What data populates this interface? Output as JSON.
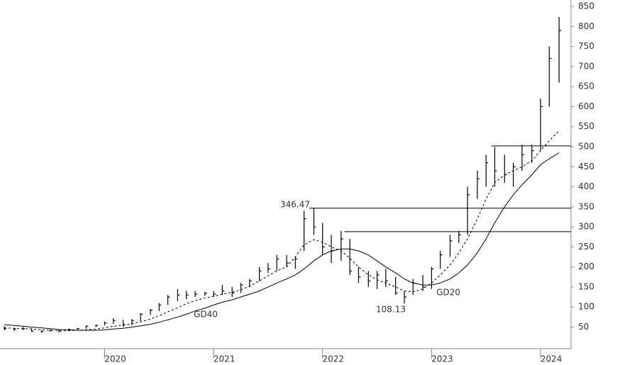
{
  "chart_data": {
    "type": "ohlc",
    "xlim": [
      2019.04,
      2024.28
    ],
    "xticks": [
      2020,
      2021,
      2022,
      2023,
      2024
    ],
    "ylim": [
      -4,
      866
    ],
    "yticks": [
      50,
      100,
      150,
      200,
      250,
      300,
      350,
      400,
      450,
      500,
      550,
      600,
      650,
      700,
      750,
      800,
      850
    ],
    "color": "#000000",
    "x": [
      2019.08,
      2019.17,
      2019.25,
      2019.33,
      2019.42,
      2019.5,
      2019.58,
      2019.67,
      2019.75,
      2019.83,
      2019.92,
      2020.0,
      2020.08,
      2020.17,
      2020.25,
      2020.33,
      2020.42,
      2020.5,
      2020.58,
      2020.67,
      2020.75,
      2020.83,
      2020.92,
      2021.0,
      2021.08,
      2021.17,
      2021.25,
      2021.33,
      2021.42,
      2021.5,
      2021.58,
      2021.67,
      2021.75,
      2021.83,
      2021.92,
      2022.0,
      2022.08,
      2022.17,
      2022.25,
      2022.33,
      2022.42,
      2022.5,
      2022.58,
      2022.67,
      2022.75,
      2022.83,
      2022.92,
      2023.0,
      2023.08,
      2023.17,
      2023.25,
      2023.33,
      2023.42,
      2023.5,
      2023.58,
      2023.67,
      2023.75,
      2023.83,
      2023.92,
      2024.0,
      2024.08,
      2024.17
    ],
    "low": [
      42,
      40,
      42,
      38,
      36,
      38,
      37,
      40,
      42,
      46,
      50,
      55,
      58,
      50,
      55,
      65,
      80,
      90,
      105,
      115,
      120,
      125,
      128,
      125,
      130,
      125,
      135,
      150,
      165,
      185,
      190,
      200,
      195,
      240,
      280,
      230,
      210,
      215,
      180,
      160,
      150,
      145,
      150,
      130,
      108.13,
      130,
      140,
      145,
      195,
      225,
      260,
      280,
      370,
      400,
      400,
      410,
      400,
      440,
      460,
      490,
      600,
      660
    ],
    "high": [
      52,
      48,
      50,
      47,
      42,
      44,
      44,
      46,
      48,
      54,
      56,
      64,
      72,
      68,
      70,
      85,
      95,
      110,
      130,
      145,
      140,
      140,
      138,
      140,
      155,
      150,
      160,
      170,
      200,
      210,
      230,
      230,
      225,
      340,
      346.47,
      310,
      280,
      290,
      270,
      200,
      190,
      190,
      195,
      175,
      140,
      170,
      180,
      200,
      240,
      280,
      290,
      400,
      440,
      480,
      500,
      480,
      460,
      505,
      505,
      620,
      750,
      824
    ],
    "close": [
      46,
      45,
      46,
      40,
      39,
      42,
      40,
      44,
      46,
      52,
      54,
      60,
      66,
      56,
      66,
      82,
      92,
      105,
      125,
      130,
      130,
      132,
      134,
      132,
      140,
      135,
      155,
      165,
      190,
      195,
      220,
      210,
      220,
      320,
      300,
      250,
      240,
      270,
      190,
      175,
      165,
      180,
      165,
      135,
      125,
      160,
      150,
      195,
      230,
      265,
      280,
      380,
      420,
      460,
      440,
      430,
      450,
      480,
      490,
      600,
      720,
      790
    ],
    "series": [
      {
        "name": "GD20",
        "dash": true,
        "values": [
          48,
          47,
          46,
          45,
          43,
          42,
          41,
          41,
          42,
          43,
          45,
          48,
          52,
          55,
          58,
          63,
          70,
          78,
          88,
          98,
          108,
          116,
          122,
          127,
          132,
          137,
          143,
          152,
          165,
          178,
          190,
          200,
          225,
          255,
          268,
          262,
          250,
          240,
          222,
          200,
          180,
          168,
          160,
          150,
          140,
          138,
          145,
          160,
          180,
          205,
          235,
          270,
          320,
          370,
          410,
          430,
          440,
          450,
          465,
          490,
          515,
          540
        ]
      },
      {
        "name": "GD40",
        "dash": false,
        "values": [
          56,
          54,
          52,
          50,
          48,
          46,
          44,
          43,
          42,
          42,
          42,
          43,
          45,
          47,
          50,
          53,
          57,
          62,
          68,
          75,
          82,
          90,
          97,
          105,
          112,
          118,
          125,
          132,
          140,
          150,
          160,
          170,
          180,
          195,
          215,
          230,
          240,
          245,
          245,
          240,
          230,
          215,
          200,
          185,
          170,
          160,
          155,
          155,
          160,
          170,
          185,
          205,
          235,
          270,
          310,
          350,
          380,
          405,
          430,
          455,
          470,
          485
        ]
      }
    ],
    "hlines": [
      {
        "value": 346.47,
        "from": 2021.88
      },
      {
        "value": 288,
        "from": 2022.2
      },
      {
        "value": 502,
        "from": 2023.55
      }
    ],
    "annotations": [
      {
        "text": "346.47"
      },
      {
        "text": "108.13"
      }
    ]
  }
}
